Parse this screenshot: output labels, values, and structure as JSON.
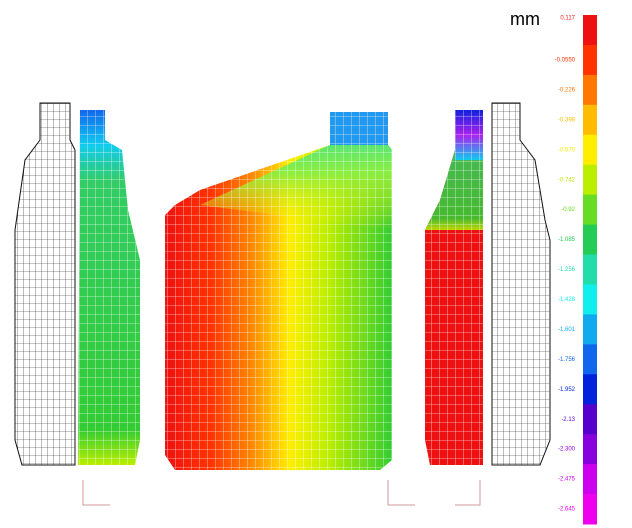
{
  "unit": "mm",
  "legend": [
    {
      "label": "0.117",
      "color": "#ee1111"
    },
    {
      "label": "-0.0550",
      "color": "#ff3300"
    },
    {
      "label": "-0.226",
      "color": "#ff7700"
    },
    {
      "label": "-0.398",
      "color": "#ffbb00"
    },
    {
      "label": "-0.570",
      "color": "#ffee00"
    },
    {
      "label": "-0.742",
      "color": "#bbee00"
    },
    {
      "label": "-0.92",
      "color": "#66dd22"
    },
    {
      "label": "-1.085",
      "color": "#22cc55"
    },
    {
      "label": "-1.256",
      "color": "#22ddaa"
    },
    {
      "label": "-1.428",
      "color": "#11eeee"
    },
    {
      "label": "-1.601",
      "color": "#11aaee"
    },
    {
      "label": "-1.756",
      "color": "#1166ee"
    },
    {
      "label": "-1.952",
      "color": "#0022dd"
    },
    {
      "label": "-2.13",
      "color": "#5500cc"
    },
    {
      "label": "-2.300",
      "color": "#8800dd"
    },
    {
      "label": "-2.475",
      "color": "#cc00ee"
    },
    {
      "label": "-2.645",
      "color": "#ee00ee"
    }
  ]
}
